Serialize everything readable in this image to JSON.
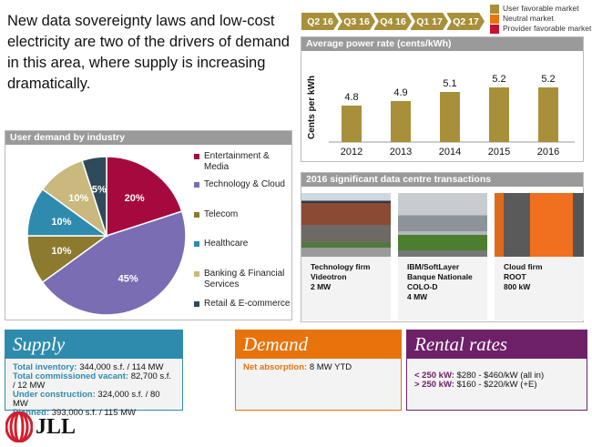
{
  "intro": "New data sovereignty laws and low-cost electricity are two of the drivers of demand in this area, where supply is increasing dramatically.",
  "timeline": [
    "Q2 16",
    "Q3 16",
    "Q4 16",
    "Q1 17",
    "Q2 17"
  ],
  "legend": [
    {
      "label": "User favorable market",
      "color": "#a8903a"
    },
    {
      "label": "Neutral market",
      "color": "#e8730c"
    },
    {
      "label": "Provider favorable market",
      "color": "#c8102e"
    }
  ],
  "chart_data": [
    {
      "type": "bar",
      "title": "Average power rate (cents/kWh)",
      "ylabel": "Cents per kWh",
      "categories": [
        "2012",
        "2013",
        "2014",
        "2015",
        "2016"
      ],
      "values": [
        4.8,
        4.9,
        5.1,
        5.2,
        5.2
      ],
      "color": "#a8903a",
      "grid": false
    },
    {
      "type": "pie",
      "title": "User demand by industry",
      "legend_placement": "right",
      "slices": [
        {
          "label": "Entertainment & Media",
          "value": 20,
          "text": "20%",
          "color": "#a6093d"
        },
        {
          "label": "Technology & Cloud",
          "value": 45,
          "text": "45%",
          "color": "#7b6db3"
        },
        {
          "label": "Telecom",
          "value": 10,
          "text": "10%",
          "color": "#8c7a2e"
        },
        {
          "label": "Healthcare",
          "value": 10,
          "text": "10%",
          "color": "#2e8bae"
        },
        {
          "label": "Banking & Financial Services",
          "value": 10,
          "text": "10%",
          "color": "#c9b97e"
        },
        {
          "label": "Retail & E-commerce",
          "value": 5,
          "text": "5%",
          "color": "#2f4a58"
        }
      ]
    }
  ],
  "transactions": {
    "title": "2016  significant data centre transactions",
    "items": [
      {
        "lines": [
          "Technology firm",
          "Videotron",
          "2 MW"
        ]
      },
      {
        "lines": [
          "IBM/SoftLayer",
          "Banque Nationale",
          "COLO-D",
          "4 MW"
        ]
      },
      {
        "lines": [
          "Cloud firm",
          "ROOT",
          "800 kW"
        ]
      }
    ]
  },
  "supply": {
    "title": "Supply",
    "rows": [
      {
        "k": "Total inventory:",
        "v": " 344,000 s.f. / 114 MW"
      },
      {
        "k": "Total commissioned vacant:",
        "v": " 82,700 s.f. / 12 MW"
      },
      {
        "k": "Under construction:",
        "v": " 324,000 s.f. / 80 MW"
      },
      {
        "k": "Planned:",
        "v": " 393,000 s.f. / 115 MW"
      }
    ]
  },
  "demand": {
    "title": "Demand",
    "rows": [
      {
        "k": "Net absorption:",
        "v": " 8 MW YTD"
      }
    ]
  },
  "rental": {
    "title": "Rental rates",
    "rows": [
      {
        "k": "< 250 kW:",
        "v": " $280 - $460/kW (all in)"
      },
      {
        "k": "> 250 kW:",
        "v": " $160 - $220/kW (+E)"
      }
    ]
  },
  "logo": "JLL"
}
